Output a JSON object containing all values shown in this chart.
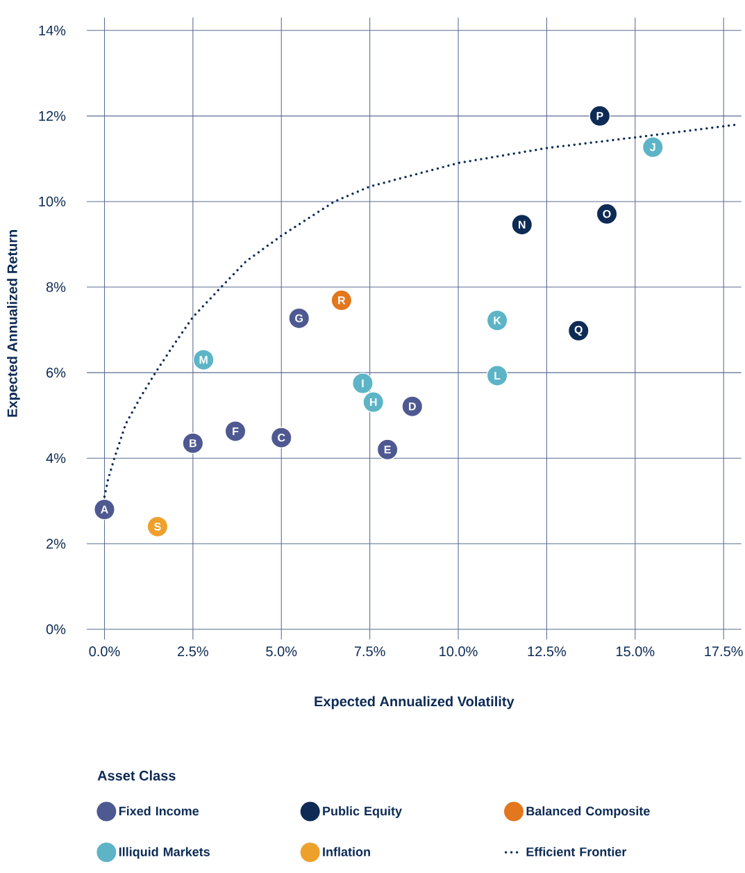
{
  "chart_data": {
    "type": "scatter",
    "xlabel": "Expected Annualized Volatility",
    "ylabel": "Expected Annualized Return",
    "legend_title": "Asset Class",
    "xlim": [
      -0.5,
      18
    ],
    "ylim": [
      0,
      14.3
    ],
    "xticks": [
      {
        "value": 0,
        "label": "0.0%"
      },
      {
        "value": 2.5,
        "label": "2.5%"
      },
      {
        "value": 5,
        "label": "5.0%"
      },
      {
        "value": 7.5,
        "label": "7.5%"
      },
      {
        "value": 10,
        "label": "10.0%"
      },
      {
        "value": 12.5,
        "label": "12.5%"
      },
      {
        "value": 15,
        "label": "15.0%"
      },
      {
        "value": 17.5,
        "label": "17.5%"
      }
    ],
    "yticks": [
      {
        "value": 0,
        "label": "0%"
      },
      {
        "value": 2,
        "label": "2%"
      },
      {
        "value": 4,
        "label": "4%"
      },
      {
        "value": 6,
        "label": "6%"
      },
      {
        "value": 8,
        "label": "8%"
      },
      {
        "value": 10,
        "label": "10%"
      },
      {
        "value": 12,
        "label": "12%"
      },
      {
        "value": 14,
        "label": "14%"
      }
    ],
    "grid": true,
    "legend": "bottom",
    "marker": "circle",
    "series": [
      {
        "name": "Fixed Income",
        "color": "#4e5991",
        "x": [
          0,
          2.5,
          5.0,
          8.7,
          8.0,
          3.7,
          5.5
        ],
        "values": [
          2.8,
          4.35,
          4.48,
          5.21,
          4.2,
          4.63,
          7.27
        ],
        "value_labels": [
          "A",
          "B",
          "C",
          "D",
          "E",
          "F",
          "G"
        ]
      },
      {
        "name": "Public Equity",
        "color": "#0d2b55",
        "x": [
          11.8,
          14.2,
          14.0,
          13.4
        ],
        "values": [
          9.46,
          9.71,
          12.0,
          6.98
        ],
        "value_labels": [
          "N",
          "O",
          "P",
          "Q"
        ]
      },
      {
        "name": "Balanced Composite",
        "color": "#e2771d",
        "x": [
          6.7
        ],
        "values": [
          7.69
        ],
        "value_labels": [
          "R"
        ]
      },
      {
        "name": "Illiquid Markets",
        "color": "#5db4c6",
        "x": [
          7.6,
          7.3,
          15.5,
          11.1,
          11.1,
          2.8
        ],
        "values": [
          5.31,
          5.75,
          11.27,
          7.22,
          5.93,
          6.3
        ],
        "value_labels": [
          "H",
          "I",
          "J",
          "K",
          "L",
          "M"
        ]
      },
      {
        "name": "Inflation",
        "color": "#eea02d",
        "x": [
          1.5
        ],
        "values": [
          2.4
        ],
        "value_labels": [
          "S"
        ]
      },
      {
        "name": "Efficient Frontier",
        "type": "line",
        "line_style": "dotted",
        "marker": "none",
        "color": "#0d2b55",
        "x": [
          0,
          0.1,
          0.28,
          0.6,
          1.0,
          1.44,
          2.0,
          2.5,
          3.3,
          4.0,
          5.0,
          6.5,
          7.5,
          10,
          12.5,
          15,
          17.9
        ],
        "values": [
          3.1,
          3.5,
          4.0,
          4.8,
          5.4,
          6.0,
          6.7,
          7.3,
          8.0,
          8.6,
          9.2,
          10.0,
          10.35,
          10.9,
          11.25,
          11.5,
          11.8
        ]
      }
    ]
  }
}
